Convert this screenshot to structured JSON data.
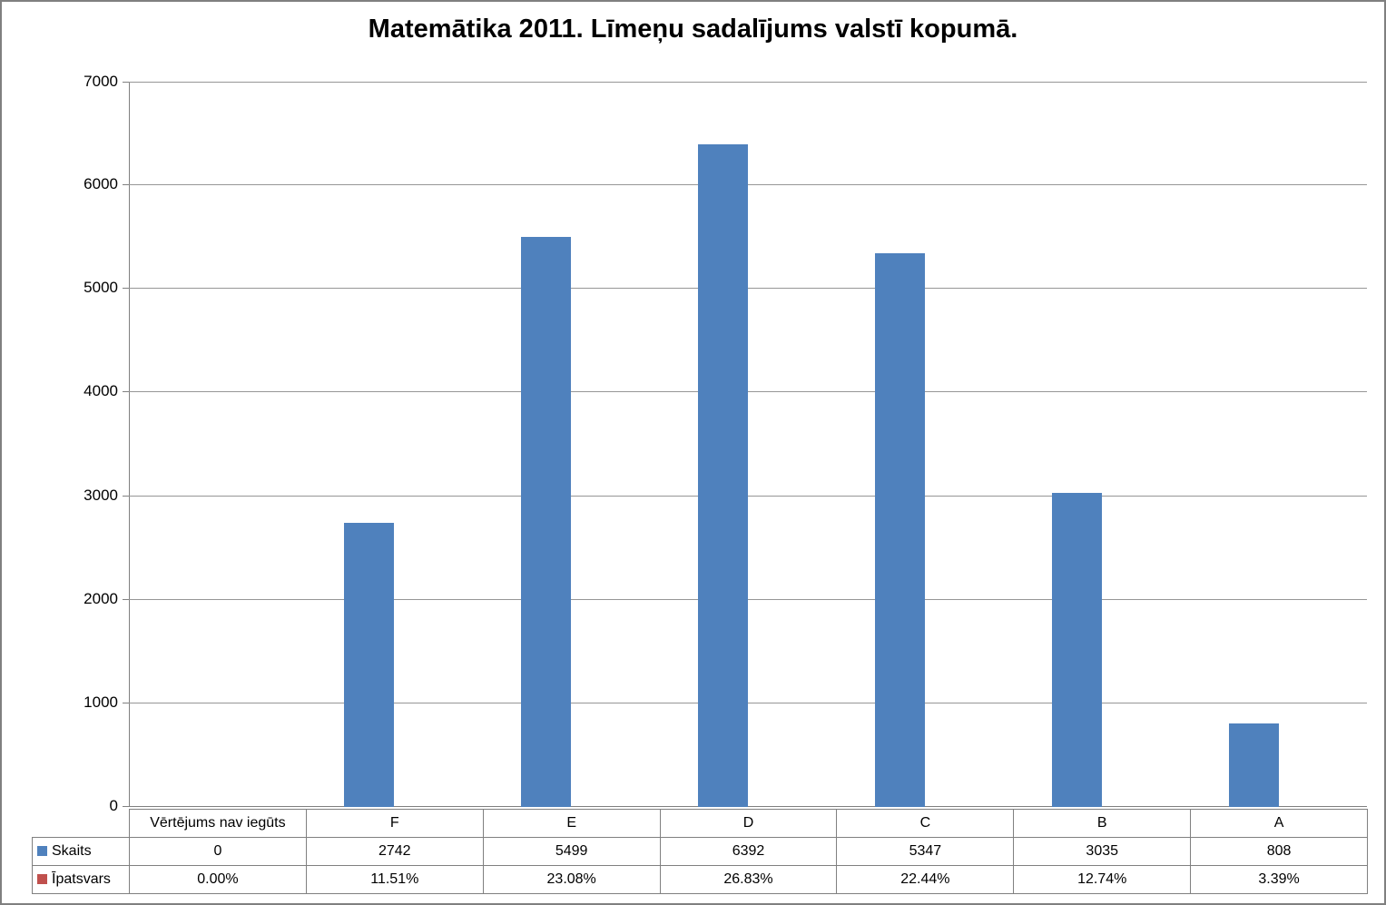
{
  "title": "Matemātika 2011. Līmeņu sadalījums valstī kopumā.",
  "chart_data": {
    "type": "bar",
    "title": "Matemātika 2011. Līmeņu sadalījums valstī kopumā.",
    "categories": [
      "Vērtējums nav iegūts",
      "F",
      "E",
      "D",
      "C",
      "B",
      "A"
    ],
    "series": [
      {
        "name": "Skaits",
        "color": "#4f81bd",
        "values": [
          0,
          2742,
          5499,
          6392,
          5347,
          3035,
          808
        ],
        "bars_visible": true
      },
      {
        "name": "Īpatsvars",
        "color": "#c0504d",
        "values": [
          "0.00%",
          "11.51%",
          "23.08%",
          "26.83%",
          "22.44%",
          "12.74%",
          "3.39%"
        ],
        "bars_visible": false
      }
    ],
    "xlabel": "",
    "ylabel": "",
    "ylim": [
      0,
      7000
    ],
    "ytick_step": 1000,
    "yticks": [
      0,
      1000,
      2000,
      3000,
      4000,
      5000,
      6000,
      7000
    ],
    "grid": true,
    "gridline_color": "#969696",
    "axis_color": "#808080",
    "legend_position": "data-table-left"
  }
}
